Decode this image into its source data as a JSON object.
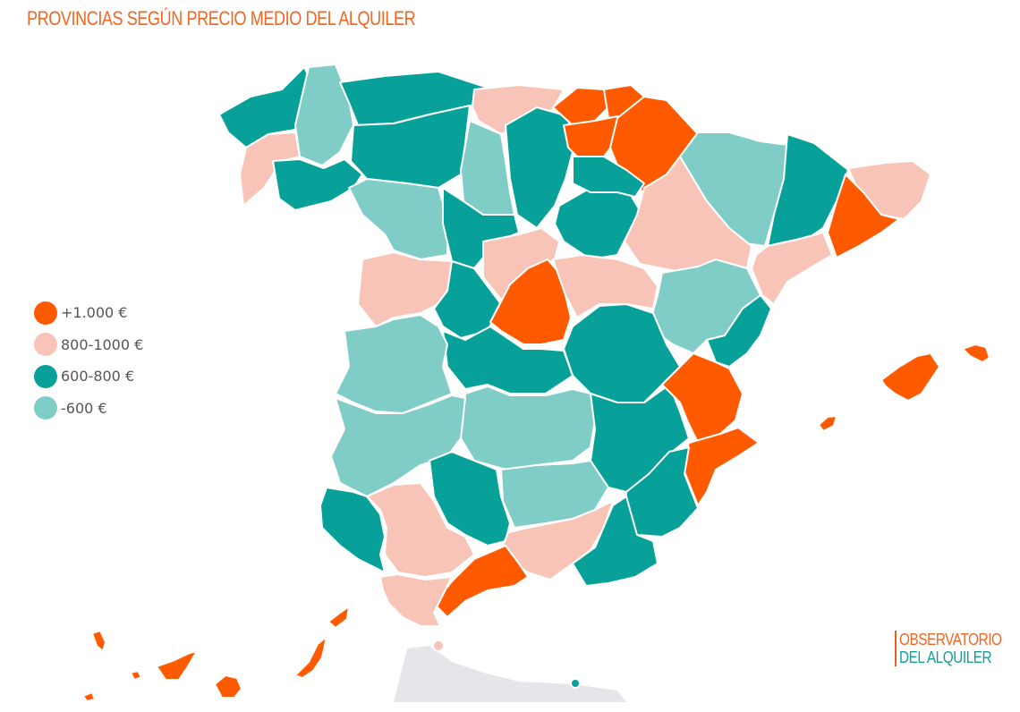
{
  "title": "PROVINCIAS SEGÚN PRECIO MEDIO DEL ALQUILER",
  "colors": {
    "title": "#f26522",
    "high": "#ff5a00",
    "upper_mid": "#f8c4b8",
    "mid": "#08a199",
    "low": "#80cdc8",
    "brand_top": "#f26522",
    "brand_bottom": "#149e96"
  },
  "legend": [
    {
      "label": "+1.000 €",
      "category": "high"
    },
    {
      "label": "800-1000  €",
      "category": "upper_mid"
    },
    {
      "label": "600-800  €",
      "category": "mid"
    },
    {
      "label": "-600  €",
      "category": "low"
    }
  ],
  "brand": {
    "line1": "OBSERVATORIO",
    "line2": "DEL ALQUILER"
  }
}
